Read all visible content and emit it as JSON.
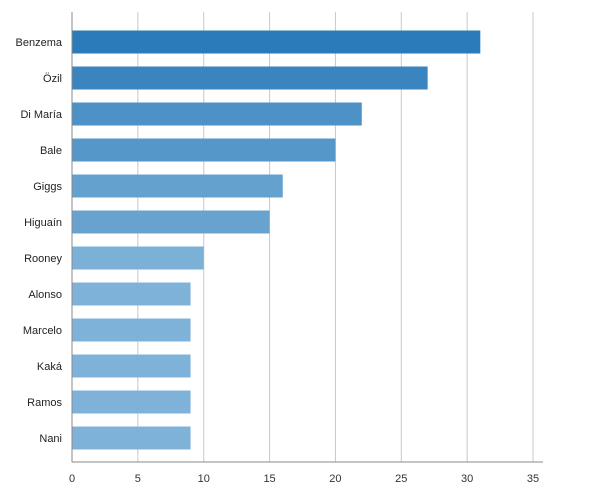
{
  "chart_data": {
    "type": "bar",
    "orientation": "horizontal",
    "categories": [
      "Benzema",
      "Özil",
      "Di María",
      "Bale",
      "Giggs",
      "Higuaín",
      "Rooney",
      "Alonso",
      "Marcelo",
      "Kaká",
      "Ramos",
      "Nani"
    ],
    "values": [
      31,
      27,
      22,
      20,
      16,
      15,
      10,
      9,
      9,
      9,
      9,
      9
    ],
    "xlim": [
      0,
      35
    ],
    "xticks": [
      0,
      5,
      10,
      15,
      20,
      25,
      30,
      35
    ],
    "grid": true,
    "title": "",
    "xlabel": "",
    "ylabel": "",
    "colors": {
      "bar_dark": "#2b7bba",
      "bar_light": "#7fb2d8",
      "grid": "#c8c8c8",
      "axis": "#888888"
    }
  }
}
